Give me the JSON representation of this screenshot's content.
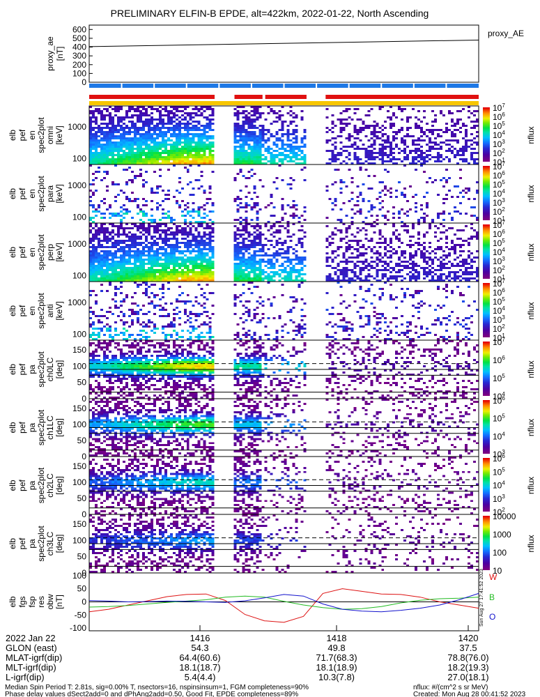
{
  "title": "PRELIMINARY ELFIN-B EPDE, alt=422km, 2022-01-22, North Ascending",
  "chart_data": [
    {
      "type": "line",
      "panel": "proxy_ae",
      "ylabel": [
        "proxy_ae",
        "[nT]"
      ],
      "yticks": [
        "600",
        "500",
        "400",
        "300",
        "200",
        "100",
        "0"
      ],
      "ylim": [
        0,
        650
      ],
      "legend": "proxy_AE",
      "x": [
        0,
        1
      ],
      "y": [
        405,
        480
      ]
    },
    {
      "type": "heatmap",
      "panel": "orbit-bars",
      "bars": [
        {
          "name": "blue",
          "color": "#1e78e6",
          "segments": [
            [
              0,
              1
            ]
          ]
        },
        {
          "name": "red",
          "color": "#e01010",
          "segments": [
            [
              0,
              0.322
            ],
            [
              0.373,
              0.445
            ],
            [
              0.452,
              0.558
            ],
            [
              0.607,
              1
            ]
          ]
        },
        {
          "name": "yellow",
          "color": "#f7c600",
          "segments": [
            [
              0,
              1
            ]
          ]
        }
      ]
    },
    {
      "type": "heatmap",
      "panel": "spectrogram-1",
      "ylabel": [
        "elb",
        "pef",
        "en",
        "spec2plot",
        "omni",
        "[keV]"
      ],
      "yticks": [
        "1000",
        "100"
      ],
      "colorbar_ticks": [
        "10^7",
        "10^6",
        "10^5",
        "10^4",
        "10^3",
        "10^2",
        "10^1"
      ],
      "colorbar_label": "nflux",
      "profile": "energy",
      "intensity": 1.0,
      "gaps": [
        [
          0.322,
          0.341
        ],
        [
          0.345,
          0.373
        ],
        [
          0.558,
          0.607
        ]
      ]
    },
    {
      "type": "heatmap",
      "panel": "spectrogram-2",
      "ylabel": [
        "elb",
        "pef",
        "en",
        "spec2plot",
        "para",
        "[keV]"
      ],
      "yticks": [
        "1000",
        "100"
      ],
      "colorbar_ticks": [
        "10^7",
        "10^6",
        "10^5",
        "10^4",
        "10^3",
        "10^2",
        "10^1"
      ],
      "colorbar_label": "nflux",
      "profile": "sparse",
      "intensity": 0.25,
      "gaps": [
        [
          0.322,
          0.341
        ],
        [
          0.345,
          0.373
        ],
        [
          0.558,
          0.607
        ]
      ]
    },
    {
      "type": "heatmap",
      "panel": "spectrogram-3",
      "ylabel": [
        "elb",
        "pef",
        "en",
        "spec2plot",
        "perp",
        "[keV]"
      ],
      "yticks": [
        "1000",
        "100"
      ],
      "colorbar_ticks": [
        "10^7",
        "10^6",
        "10^5",
        "10^4",
        "10^3",
        "10^2",
        "10^1"
      ],
      "colorbar_label": "nflux",
      "profile": "energy",
      "intensity": 1.0,
      "gaps": [
        [
          0.322,
          0.341
        ],
        [
          0.345,
          0.373
        ],
        [
          0.558,
          0.607
        ]
      ]
    },
    {
      "type": "heatmap",
      "panel": "spectrogram-4",
      "ylabel": [
        "elb",
        "pef",
        "en",
        "spec2plot",
        "anti",
        "[keV]"
      ],
      "yticks": [
        "1000",
        "100"
      ],
      "colorbar_ticks": [
        "10^7",
        "10^6",
        "10^5",
        "10^4",
        "10^3",
        "10^2",
        "10^1"
      ],
      "colorbar_label": "nflux",
      "profile": "sparse",
      "intensity": 0.3,
      "gaps": [
        [
          0.322,
          0.341
        ],
        [
          0.345,
          0.373
        ],
        [
          0.558,
          0.607
        ]
      ]
    },
    {
      "type": "heatmap",
      "panel": "pitch-angle-0",
      "ylabel": [
        "elb",
        "pef",
        "pa",
        "spec2plot",
        "ch0LC",
        "[deg]"
      ],
      "yticks": [
        "150",
        "100",
        "50",
        "0"
      ],
      "colorbar_ticks": [
        "10^7",
        "10^6",
        "10^5",
        "10^4"
      ],
      "colorbar_label": "nflux",
      "profile": "pitch",
      "intensity": 1.0,
      "gaps": [
        [
          0.322,
          0.341
        ],
        [
          0.345,
          0.373
        ],
        [
          0.558,
          0.607
        ]
      ]
    },
    {
      "type": "heatmap",
      "panel": "pitch-angle-1",
      "ylabel": [
        "elb",
        "pef",
        "pa",
        "spec2plot",
        "ch1LC",
        "[deg]"
      ],
      "yticks": [
        "150",
        "100",
        "50",
        "0"
      ],
      "colorbar_ticks": [
        "10^6",
        "10^5",
        "10^4",
        "10^3"
      ],
      "colorbar_label": "nflux",
      "profile": "pitch",
      "intensity": 0.8,
      "gaps": [
        [
          0.322,
          0.341
        ],
        [
          0.345,
          0.373
        ],
        [
          0.558,
          0.607
        ]
      ]
    },
    {
      "type": "heatmap",
      "panel": "pitch-angle-2",
      "ylabel": [
        "elb",
        "pef",
        "pa",
        "spec2plot",
        "ch2LC",
        "[deg]"
      ],
      "yticks": [
        "150",
        "100",
        "50",
        "0"
      ],
      "colorbar_ticks": [
        "10^6",
        "10^5",
        "10^4",
        "10^3",
        "10^2"
      ],
      "colorbar_label": "nflux",
      "profile": "pitch",
      "intensity": 0.6,
      "gaps": [
        [
          0.322,
          0.341
        ],
        [
          0.345,
          0.373
        ],
        [
          0.558,
          0.607
        ]
      ]
    },
    {
      "type": "heatmap",
      "panel": "pitch-angle-3",
      "ylabel": [
        "elb",
        "pef",
        "pa",
        "spec2plot",
        "ch3LC",
        "[deg]"
      ],
      "yticks": [
        "150",
        "100",
        "50",
        "0"
      ],
      "colorbar_ticks": [
        "10000",
        "1000",
        "100",
        "10"
      ],
      "colorbar_label": "nflux",
      "profile": "pitch",
      "intensity": 0.45,
      "gaps": [
        [
          0.322,
          0.341
        ],
        [
          0.345,
          0.373
        ],
        [
          0.558,
          0.607
        ]
      ]
    },
    {
      "type": "line",
      "panel": "fgs",
      "ylabel": [
        "elb",
        "fgs",
        "fsp",
        "res",
        "obw",
        "[nT]"
      ],
      "yticks": [
        "100",
        "50",
        "0",
        "-50",
        "-100"
      ],
      "ylim": [
        -110,
        110
      ],
      "series": [
        {
          "name": "W",
          "color": "#dd1111",
          "x": [
            0,
            0.05,
            0.1,
            0.15,
            0.2,
            0.25,
            0.3,
            0.35,
            0.4,
            0.45,
            0.5,
            0.55,
            0.6,
            0.65,
            0.7,
            0.75,
            0.8,
            0.85,
            0.9,
            0.95,
            1
          ],
          "y": [
            -38,
            -28,
            -12,
            4,
            20,
            28,
            30,
            5,
            -48,
            -72,
            -78,
            -55,
            32,
            50,
            40,
            30,
            28,
            18,
            0,
            -12,
            -24
          ]
        },
        {
          "name": "B",
          "color": "#22bb22",
          "x": [
            0,
            0.05,
            0.1,
            0.15,
            0.2,
            0.25,
            0.3,
            0.35,
            0.4,
            0.45,
            0.5,
            0.55,
            0.6,
            0.65,
            0.7,
            0.75,
            0.8,
            0.85,
            0.9,
            0.95,
            1
          ],
          "y": [
            -20,
            -18,
            -14,
            -8,
            -2,
            3,
            8,
            18,
            22,
            18,
            2,
            -12,
            -22,
            -28,
            -26,
            -18,
            -4,
            6,
            12,
            14,
            18
          ]
        },
        {
          "name": "O",
          "color": "#1111cc",
          "x": [
            0,
            0.05,
            0.1,
            0.15,
            0.2,
            0.25,
            0.3,
            0.35,
            0.4,
            0.45,
            0.5,
            0.55,
            0.6,
            0.65,
            0.7,
            0.75,
            0.8,
            0.85,
            0.9,
            0.95,
            1
          ],
          "y": [
            5,
            3,
            0,
            1,
            3,
            2,
            0,
            -2,
            4,
            15,
            28,
            22,
            -8,
            -28,
            -35,
            -38,
            -32,
            -24,
            -12,
            8,
            32
          ]
        }
      ]
    }
  ],
  "xaxis": {
    "rows": [
      {
        "label": "2022 Jan 22",
        "values": [
          "1416",
          "1418",
          "1420"
        ]
      },
      {
        "label": "GLON (east)",
        "values": [
          "54.3",
          "49.8",
          "37.5"
        ]
      },
      {
        "label": "MLAT-igrf(dip)",
        "values": [
          "64.4(60.6)",
          "71.7(68.3)",
          "78.8(76.0)"
        ]
      },
      {
        "label": "MLT-igrf(dip)",
        "values": [
          "18.1(18.7)",
          "18.1(18.9)",
          "18.2(19.3)"
        ]
      },
      {
        "label": "L-igrf(dip)",
        "values": [
          "5.4(4.4)",
          "10.3(7.8)",
          "27.0(18.1)"
        ]
      }
    ]
  },
  "footer": {
    "line1": "Median Spin Period T: 2.81s, sig=0.00% T, nsectors=16, nspinsinsum=1, FGM completeness=90%",
    "line2": "Phase delay values dSect2add=0 and dPhAng2add=0.50, Good Fit, EPDE completeness=89%",
    "units": "nflux: #/(cm^2 s sr MeV)",
    "created": "Created: Mon Aug 28 00:41:52 2023",
    "stamp": "Sun Aug 27 17:41:52 2023"
  },
  "colors": {
    "accent_red": "#e01010",
    "accent_blue": "#1e78e6",
    "accent_yellow": "#f7c600"
  }
}
